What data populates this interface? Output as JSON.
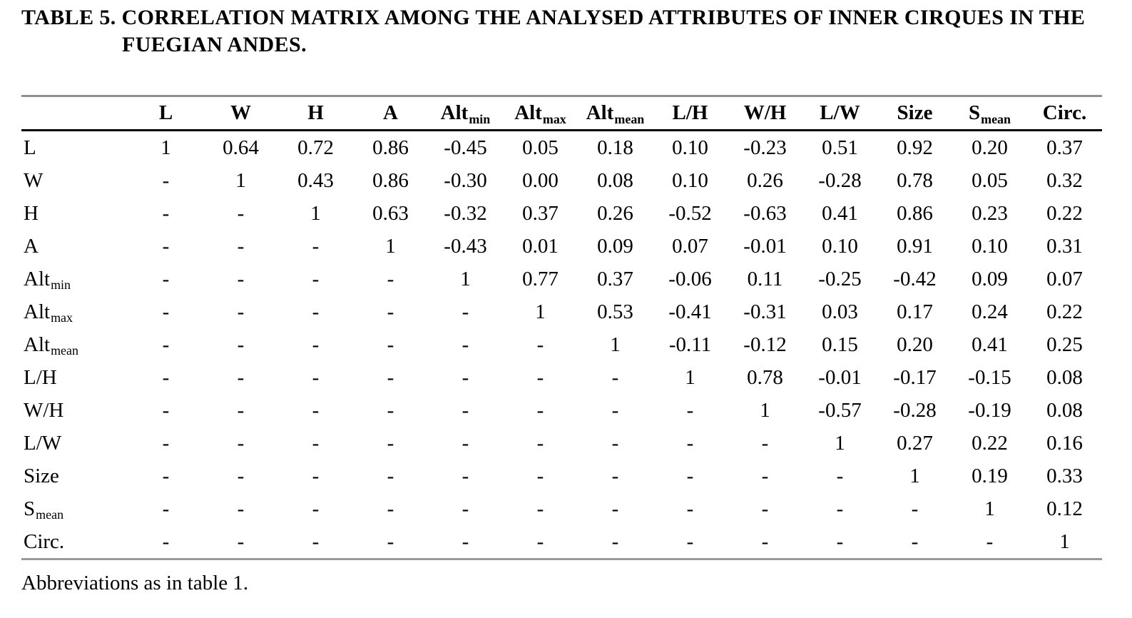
{
  "title": {
    "line1": "TABLE 5. CORRELATION MATRIX AMONG THE ANALYSED ATTRIBUTES OF INNER CIRQUES IN THE",
    "line2": "FUEGIAN ANDES."
  },
  "footnote": "Abbreviations as in table 1.",
  "colors": {
    "text": "#000000",
    "rule_light": "#8f8f8f",
    "rule_dark": "#000000",
    "background": "#ffffff"
  },
  "chart_data": {
    "type": "table",
    "title": "TABLE 5. CORRELATION MATRIX AMONG THE ANALYSED ATTRIBUTES OF INNER CIRQUES IN THE FUEGIAN ANDES.",
    "columns": [
      {
        "base": "L",
        "sub": ""
      },
      {
        "base": "W",
        "sub": ""
      },
      {
        "base": "H",
        "sub": ""
      },
      {
        "base": "A",
        "sub": ""
      },
      {
        "base": "Alt",
        "sub": "min"
      },
      {
        "base": "Alt",
        "sub": "max"
      },
      {
        "base": "Alt",
        "sub": "mean"
      },
      {
        "base": "L/H",
        "sub": ""
      },
      {
        "base": "W/H",
        "sub": ""
      },
      {
        "base": "L/W",
        "sub": ""
      },
      {
        "base": "Size",
        "sub": ""
      },
      {
        "base": "S",
        "sub": "mean"
      },
      {
        "base": "Circ.",
        "sub": ""
      }
    ],
    "rows": [
      {
        "label": {
          "base": "L",
          "sub": ""
        },
        "cells": [
          "1",
          "0.64",
          "0.72",
          "0.86",
          "-0.45",
          "0.05",
          "0.18",
          "0.10",
          "-0.23",
          "0.51",
          "0.92",
          "0.20",
          "0.37"
        ]
      },
      {
        "label": {
          "base": "W",
          "sub": ""
        },
        "cells": [
          "-",
          "1",
          "0.43",
          "0.86",
          "-0.30",
          "0.00",
          "0.08",
          "0.10",
          "0.26",
          "-0.28",
          "0.78",
          "0.05",
          "0.32"
        ]
      },
      {
        "label": {
          "base": "H",
          "sub": ""
        },
        "cells": [
          "-",
          "-",
          "1",
          "0.63",
          "-0.32",
          "0.37",
          "0.26",
          "-0.52",
          "-0.63",
          "0.41",
          "0.86",
          "0.23",
          "0.22"
        ]
      },
      {
        "label": {
          "base": "A",
          "sub": ""
        },
        "cells": [
          "-",
          "-",
          "-",
          "1",
          "-0.43",
          "0.01",
          "0.09",
          "0.07",
          "-0.01",
          "0.10",
          "0.91",
          "0.10",
          "0.31"
        ]
      },
      {
        "label": {
          "base": "Alt",
          "sub": "min"
        },
        "cells": [
          "-",
          "-",
          "-",
          "-",
          "1",
          "0.77",
          "0.37",
          "-0.06",
          "0.11",
          "-0.25",
          "-0.42",
          "0.09",
          "0.07"
        ]
      },
      {
        "label": {
          "base": "Alt",
          "sub": "max"
        },
        "cells": [
          "-",
          "-",
          "-",
          "-",
          "-",
          "1",
          "0.53",
          "-0.41",
          "-0.31",
          "0.03",
          "0.17",
          "0.24",
          "0.22"
        ]
      },
      {
        "label": {
          "base": "Alt",
          "sub": "mean"
        },
        "cells": [
          "-",
          "-",
          "-",
          "-",
          "-",
          "-",
          "1",
          "-0.11",
          "-0.12",
          "0.15",
          "0.20",
          "0.41",
          "0.25"
        ]
      },
      {
        "label": {
          "base": "L/H",
          "sub": ""
        },
        "cells": [
          "-",
          "-",
          "-",
          "-",
          "-",
          "-",
          "-",
          "1",
          "0.78",
          "-0.01",
          "-0.17",
          "-0.15",
          "0.08"
        ]
      },
      {
        "label": {
          "base": "W/H",
          "sub": ""
        },
        "cells": [
          "-",
          "-",
          "-",
          "-",
          "-",
          "-",
          "-",
          "-",
          "1",
          "-0.57",
          "-0.28",
          "-0.19",
          "0.08"
        ]
      },
      {
        "label": {
          "base": "L/W",
          "sub": ""
        },
        "cells": [
          "-",
          "-",
          "-",
          "-",
          "-",
          "-",
          "-",
          "-",
          "-",
          "1",
          "0.27",
          "0.22",
          "0.16"
        ]
      },
      {
        "label": {
          "base": "Size",
          "sub": ""
        },
        "cells": [
          "-",
          "-",
          "-",
          "-",
          "-",
          "-",
          "-",
          "-",
          "-",
          "-",
          "1",
          "0.19",
          "0.33"
        ]
      },
      {
        "label": {
          "base": "S",
          "sub": "mean"
        },
        "cells": [
          "-",
          "-",
          "-",
          "-",
          "-",
          "-",
          "-",
          "-",
          "-",
          "-",
          "-",
          "1",
          "0.12"
        ]
      },
      {
        "label": {
          "base": "Circ.",
          "sub": ""
        },
        "cells": [
          "-",
          "-",
          "-",
          "-",
          "-",
          "-",
          "-",
          "-",
          "-",
          "-",
          "-",
          "-",
          "1"
        ]
      }
    ]
  }
}
